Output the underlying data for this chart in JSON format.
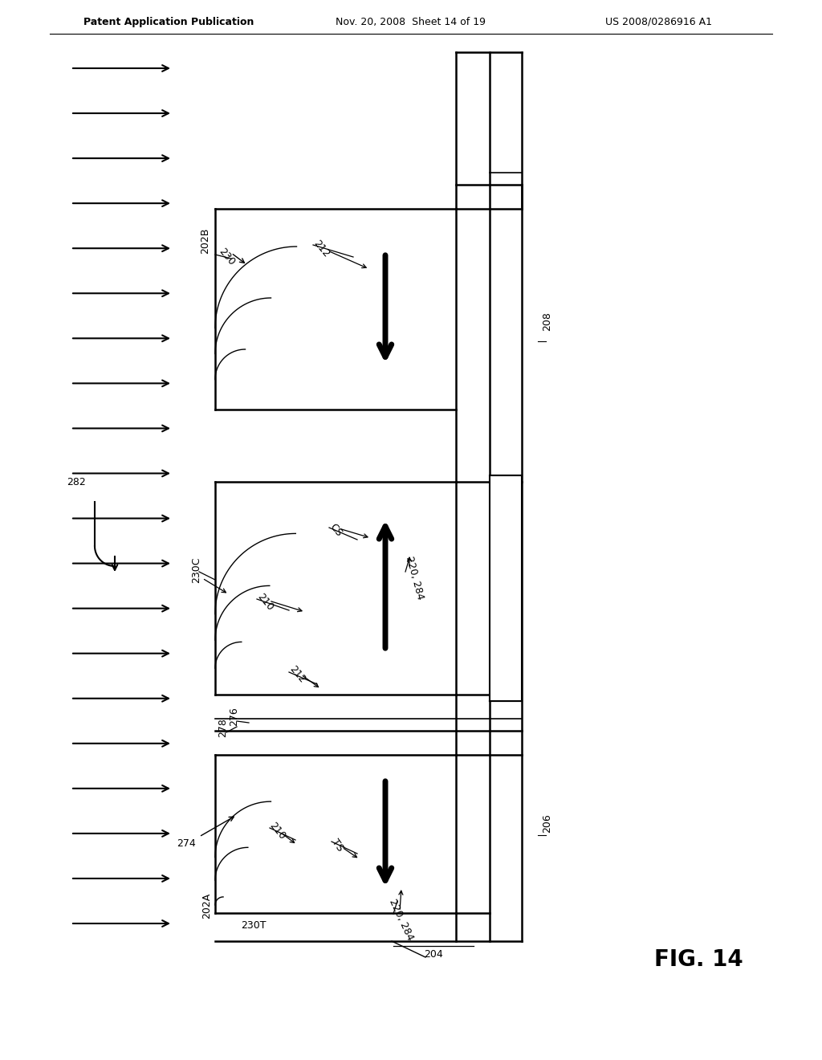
{
  "header_left": "Patent Application Publication",
  "header_mid": "Nov. 20, 2008  Sheet 14 of 19",
  "header_right": "US 2008/0286916 A1",
  "fig_label": "FIG. 14",
  "bg_color": "#ffffff",
  "line_color": "#000000"
}
